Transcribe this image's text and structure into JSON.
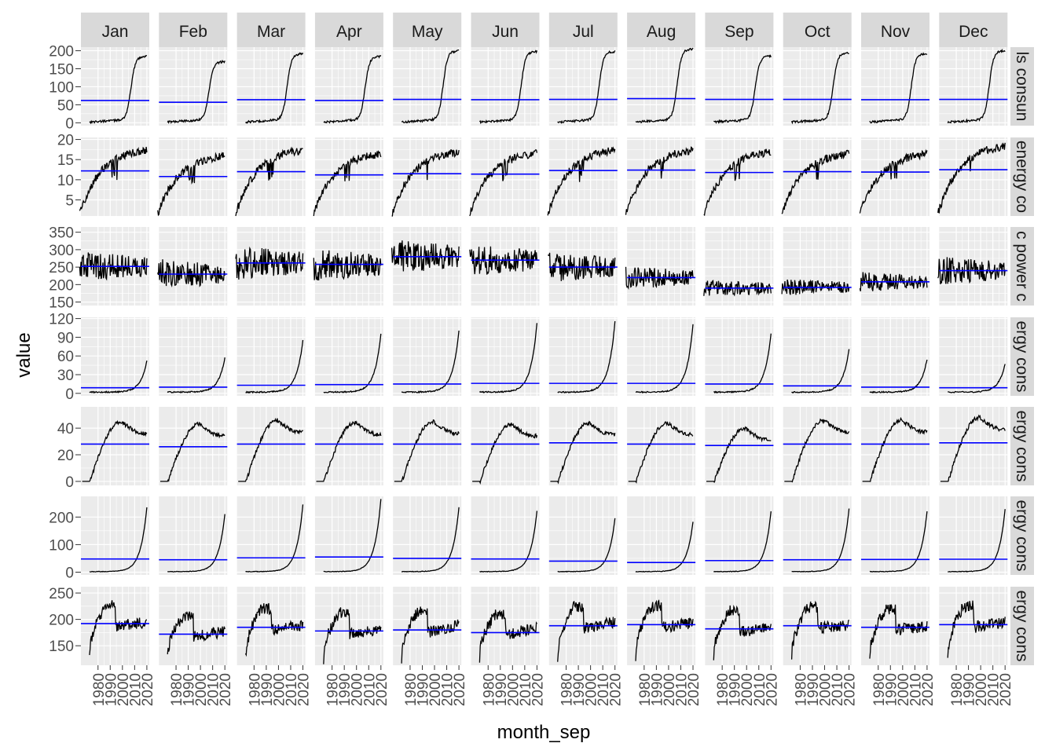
{
  "chart_data": {
    "type": "line",
    "xlabel": "month_sep",
    "ylabel": "value",
    "colors": {
      "panel_bg": "#ebebeb",
      "strip_bg": "#d9d9d9",
      "grid": "#ffffff",
      "series": "#000000",
      "mean_line": "#0000ff"
    },
    "months": [
      "Jan",
      "Feb",
      "Mar",
      "Apr",
      "May",
      "Jun",
      "Jul",
      "Aug",
      "Sep",
      "Oct",
      "Nov",
      "Dec"
    ],
    "x_range": [
      1966,
      2022
    ],
    "x_ticks": [
      1980,
      1990,
      2000,
      2010,
      2020
    ],
    "x_tick_labels": [
      "1980",
      "1990",
      "2000",
      "2010",
      "2020"
    ],
    "rows": [
      {
        "strip_label": "ls consun",
        "shape": "sigmoid",
        "y_range": [
          -8,
          210
        ],
        "y_ticks": [
          0,
          50,
          100,
          150,
          200
        ],
        "x_start": 1973,
        "x_end": 2020,
        "y_start": 2,
        "y_end": 185,
        "midpoint": 2007,
        "mean_by_month": [
          62,
          57,
          64,
          62,
          65,
          64,
          65,
          67,
          65,
          65,
          64,
          65
        ],
        "end_by_month": [
          185,
          170,
          192,
          185,
          200,
          198,
          198,
          205,
          185,
          195,
          192,
          200
        ]
      },
      {
        "strip_label": "energy co",
        "shape": "rise",
        "y_range": [
          1,
          20.5
        ],
        "y_ticks": [
          5,
          10,
          15,
          20
        ],
        "x_start": 1965,
        "x_end": 2020,
        "y_start": 1.5,
        "y_end": 18,
        "mean_by_month": [
          12.2,
          10.8,
          12.0,
          11.2,
          11.5,
          11.4,
          12.3,
          12.4,
          11.8,
          12.0,
          11.9,
          12.5
        ],
        "end_by_month": [
          18,
          16.5,
          18,
          17,
          17.5,
          17.2,
          18,
          18,
          17.5,
          17,
          17,
          19
        ]
      },
      {
        "strip_label": "c power c",
        "shape": "noisy",
        "y_range": [
          140,
          365
        ],
        "y_ticks": [
          150,
          200,
          250,
          300,
          350
        ],
        "x_start": 1965,
        "x_end": 2020,
        "mean_by_month": [
          252,
          230,
          262,
          258,
          280,
          270,
          250,
          220,
          190,
          192,
          208,
          240
        ],
        "amp_by_month": [
          40,
          40,
          45,
          45,
          45,
          42,
          40,
          30,
          22,
          22,
          26,
          38
        ]
      },
      {
        "strip_label": "ergy cons",
        "shape": "exp",
        "y_range": [
          -4,
          122
        ],
        "y_ticks": [
          0,
          30,
          60,
          90,
          120
        ],
        "x_start": 1973,
        "x_end": 2020,
        "mean_by_month": [
          9,
          10,
          13,
          14,
          15,
          16,
          16,
          16,
          15,
          12,
          10,
          9
        ],
        "end_by_month": [
          52,
          57,
          85,
          95,
          100,
          112,
          115,
          110,
          95,
          70,
          55,
          48
        ]
      },
      {
        "strip_label": "ergy cons",
        "shape": "hump",
        "y_range": [
          -3,
          56
        ],
        "y_ticks": [
          0,
          20,
          40
        ],
        "x_start": 1967,
        "x_end": 2020,
        "y_start": 0,
        "y_end": 39,
        "mean_by_month": [
          28,
          26,
          28,
          28,
          28,
          28,
          29,
          28,
          27,
          28,
          28,
          29
        ],
        "end_by_month": [
          39,
          37,
          40,
          38,
          39,
          37,
          38,
          38,
          34,
          40,
          40,
          42
        ]
      },
      {
        "strip_label": "ergy cons",
        "shape": "exp",
        "y_range": [
          -10,
          275
        ],
        "y_ticks": [
          0,
          100,
          200
        ],
        "x_start": 1973,
        "x_end": 2020,
        "mean_by_month": [
          48,
          45,
          52,
          55,
          50,
          48,
          40,
          35,
          42,
          45,
          46,
          47
        ],
        "end_by_month": [
          235,
          210,
          245,
          265,
          235,
          222,
          195,
          182,
          220,
          230,
          220,
          228
        ]
      },
      {
        "strip_label": "ergy cons",
        "shape": "steps",
        "y_range": [
          113,
          262
        ],
        "y_ticks": [
          150,
          200,
          250
        ],
        "x_start": 1973,
        "x_end": 2020,
        "y_start": 125,
        "mean_by_month": [
          192,
          172,
          185,
          178,
          180,
          175,
          188,
          190,
          182,
          188,
          185,
          190
        ],
        "end_by_month": [
          200,
          182,
          195,
          185,
          195,
          190,
          200,
          198,
          188,
          195,
          192,
          200
        ]
      }
    ]
  }
}
